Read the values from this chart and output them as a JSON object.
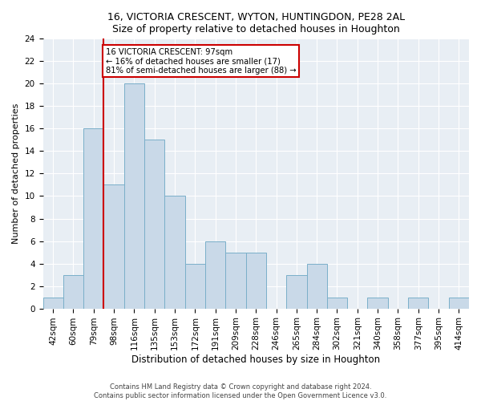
{
  "title1": "16, VICTORIA CRESCENT, WYTON, HUNTINGDON, PE28 2AL",
  "title2": "Size of property relative to detached houses in Houghton",
  "xlabel": "Distribution of detached houses by size in Houghton",
  "ylabel": "Number of detached properties",
  "bin_labels": [
    "42sqm",
    "60sqm",
    "79sqm",
    "98sqm",
    "116sqm",
    "135sqm",
    "153sqm",
    "172sqm",
    "191sqm",
    "209sqm",
    "228sqm",
    "246sqm",
    "265sqm",
    "284sqm",
    "302sqm",
    "321sqm",
    "340sqm",
    "358sqm",
    "377sqm",
    "395sqm",
    "414sqm"
  ],
  "bar_heights": [
    1,
    3,
    16,
    11,
    20,
    15,
    10,
    4,
    6,
    5,
    5,
    0,
    3,
    4,
    1,
    0,
    1,
    0,
    1,
    0,
    1
  ],
  "bar_color": "#c9d9e8",
  "bar_edgecolor": "#7aafc9",
  "vline_color": "#cc0000",
  "annotation_line1": "16 VICTORIA CRESCENT: 97sqm",
  "annotation_line2": "← 16% of detached houses are smaller (17)",
  "annotation_line3": "81% of semi-detached houses are larger (88) →",
  "annotation_box_color": "#ffffff",
  "annotation_box_edgecolor": "#cc0000",
  "ylim": [
    0,
    24
  ],
  "yticks": [
    0,
    2,
    4,
    6,
    8,
    10,
    12,
    14,
    16,
    18,
    20,
    22,
    24
  ],
  "footer1": "Contains HM Land Registry data © Crown copyright and database right 2024.",
  "footer2": "Contains public sector information licensed under the Open Government Licence v3.0.",
  "background_color": "#e8eef4",
  "grid_color": "#ffffff",
  "title_fontsize": 9,
  "axis_label_fontsize": 8,
  "tick_fontsize": 7.5,
  "footer_fontsize": 6
}
